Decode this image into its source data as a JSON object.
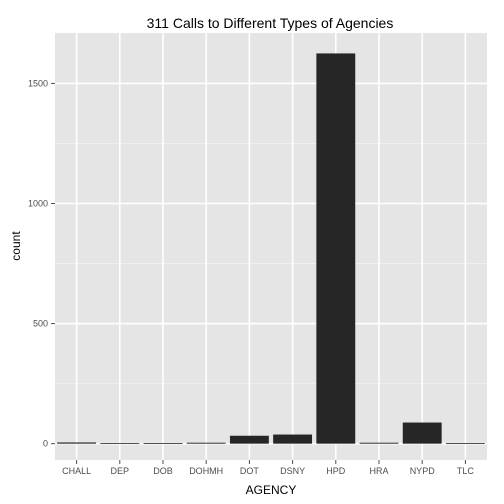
{
  "chart_data": {
    "type": "bar",
    "title": "311 Calls to Different Types of Agencies",
    "xlabel": "AGENCY",
    "ylabel": "count",
    "categories": [
      "CHALL",
      "DEP",
      "DOB",
      "DOHMH",
      "DOT",
      "DSNY",
      "HPD",
      "HRA",
      "NYPD",
      "TLC"
    ],
    "values": [
      5,
      2,
      2,
      4,
      33,
      38,
      1625,
      4,
      88,
      2
    ],
    "ylim": [
      -68,
      1710
    ],
    "yticks": [
      0,
      500,
      1000,
      1500
    ],
    "grid": true,
    "legend": "none",
    "colors": {
      "panel": "#e5e5e5",
      "grid_major": "#ffffff",
      "grid_minor": "#f2f2f2",
      "bar": "#262626"
    }
  }
}
